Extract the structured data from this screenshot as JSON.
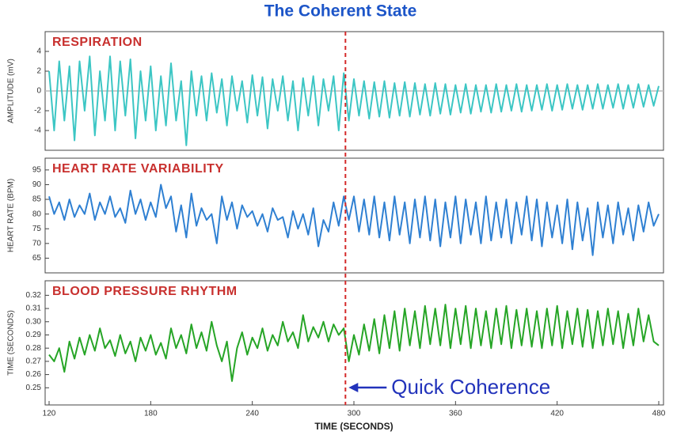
{
  "title": "The Coherent State",
  "chart_data": [
    {
      "type": "line",
      "title": "RESPIRATION",
      "ylabel": "AMPLITUDE (mV)",
      "color": "#3cc6c4",
      "xlim": [
        120,
        480
      ],
      "ylim": [
        -6,
        6
      ],
      "yticks": [
        -4,
        -2,
        0,
        2,
        4
      ],
      "zero_line": true,
      "x": [
        120,
        123,
        126,
        129,
        132,
        135,
        138,
        141,
        144,
        147,
        150,
        153,
        156,
        159,
        162,
        165,
        168,
        171,
        174,
        177,
        180,
        183,
        186,
        189,
        192,
        195,
        198,
        201,
        204,
        207,
        210,
        213,
        216,
        219,
        222,
        225,
        228,
        231,
        234,
        237,
        240,
        243,
        246,
        249,
        252,
        255,
        258,
        261,
        264,
        267,
        270,
        273,
        276,
        279,
        282,
        285,
        288,
        291,
        294,
        297,
        300,
        303,
        306,
        309,
        312,
        315,
        318,
        321,
        324,
        327,
        330,
        333,
        336,
        339,
        342,
        345,
        348,
        351,
        354,
        357,
        360,
        363,
        366,
        369,
        372,
        375,
        378,
        381,
        384,
        387,
        390,
        393,
        396,
        399,
        402,
        405,
        408,
        411,
        414,
        417,
        420,
        423,
        426,
        429,
        432,
        435,
        438,
        441,
        444,
        447,
        450,
        453,
        456,
        459,
        462,
        465,
        468,
        471,
        474,
        477,
        480
      ],
      "values": [
        2,
        -4,
        3,
        -3,
        2.5,
        -5,
        3,
        -2,
        3.5,
        -4.5,
        2,
        -3,
        3.5,
        -4,
        3,
        -2.5,
        3.2,
        -4.8,
        2,
        -3,
        2.5,
        -4,
        1.5,
        -3.5,
        2.8,
        -3,
        1,
        -5.5,
        2,
        -2.5,
        1.5,
        -3,
        1.8,
        -2.2,
        1.2,
        -3.5,
        1.5,
        -2,
        1,
        -3.2,
        1.6,
        -2.5,
        1.4,
        -3.8,
        1.2,
        -2,
        1.5,
        -3,
        1,
        -4,
        1.3,
        -2.5,
        1.5,
        -3.5,
        1.2,
        -2,
        1.5,
        -4,
        1.8,
        -3,
        1.2,
        -2.5,
        1,
        -2.8,
        0.9,
        -2.6,
        1,
        -2.7,
        0.8,
        -2.5,
        0.9,
        -2.6,
        0.8,
        -2.4,
        0.7,
        -2.5,
        0.8,
        -2.3,
        0.7,
        -2.4,
        0.6,
        -2.2,
        0.7,
        -2.3,
        0.6,
        -2.1,
        0.6,
        -2.2,
        0.7,
        -2.1,
        0.6,
        -2,
        0.7,
        -2.1,
        0.6,
        -2,
        0.6,
        -1.9,
        0.7,
        -2,
        0.6,
        -1.9,
        0.7,
        -1.8,
        0.6,
        -1.9,
        0.6,
        -1.8,
        0.7,
        -1.8,
        0.6,
        -1.7,
        0.7,
        -1.8,
        0.6,
        -1.7,
        0.7,
        -1.6,
        0.6,
        -1.5,
        0.5
      ]
    },
    {
      "type": "line",
      "title": "HEART RATE VARIABILITY",
      "ylabel": "HEART RATE (BPM)",
      "color": "#2f80d2",
      "xlim": [
        120,
        480
      ],
      "ylim": [
        60,
        99
      ],
      "yticks": [
        65,
        70,
        75,
        80,
        85,
        90,
        95
      ],
      "x": [
        120,
        123,
        126,
        129,
        132,
        135,
        138,
        141,
        144,
        147,
        150,
        153,
        156,
        159,
        162,
        165,
        168,
        171,
        174,
        177,
        180,
        183,
        186,
        189,
        192,
        195,
        198,
        201,
        204,
        207,
        210,
        213,
        216,
        219,
        222,
        225,
        228,
        231,
        234,
        237,
        240,
        243,
        246,
        249,
        252,
        255,
        258,
        261,
        264,
        267,
        270,
        273,
        276,
        279,
        282,
        285,
        288,
        291,
        294,
        297,
        300,
        303,
        306,
        309,
        312,
        315,
        318,
        321,
        324,
        327,
        330,
        333,
        336,
        339,
        342,
        345,
        348,
        351,
        354,
        357,
        360,
        363,
        366,
        369,
        372,
        375,
        378,
        381,
        384,
        387,
        390,
        393,
        396,
        399,
        402,
        405,
        408,
        411,
        414,
        417,
        420,
        423,
        426,
        429,
        432,
        435,
        438,
        441,
        444,
        447,
        450,
        453,
        456,
        459,
        462,
        465,
        468,
        471,
        474,
        477,
        480
      ],
      "values": [
        86,
        80,
        84,
        78,
        85,
        79,
        83,
        80,
        87,
        78,
        84,
        80,
        86,
        79,
        82,
        77,
        88,
        80,
        85,
        78,
        84,
        79,
        90,
        82,
        86,
        74,
        83,
        72,
        87,
        76,
        82,
        78,
        80,
        70,
        86,
        78,
        84,
        75,
        83,
        79,
        81,
        76,
        80,
        74,
        82,
        78,
        79,
        72,
        81,
        75,
        80,
        73,
        82,
        69,
        78,
        74,
        84,
        76,
        86,
        78,
        86,
        74,
        85,
        73,
        86,
        72,
        84,
        71,
        86,
        73,
        84,
        70,
        85,
        72,
        86,
        71,
        85,
        69,
        84,
        72,
        86,
        70,
        85,
        73,
        84,
        70,
        86,
        71,
        84,
        72,
        85,
        70,
        84,
        73,
        86,
        71,
        85,
        69,
        84,
        72,
        83,
        70,
        85,
        68,
        84,
        71,
        82,
        66,
        84,
        72,
        83,
        70,
        84,
        73,
        82,
        71,
        83,
        74,
        84,
        76,
        80
      ]
    },
    {
      "type": "line",
      "title": "BLOOD PRESSURE RHYTHM",
      "ylabel": "TIME (SECONDS)",
      "xlabel": "TIME (SECONDS)",
      "color": "#26a526",
      "xlim": [
        120,
        480
      ],
      "ylim": [
        0.237,
        0.331
      ],
      "yticks": [
        0.25,
        0.26,
        0.27,
        0.28,
        0.29,
        {
          "value": 0.3,
          "label": "0.30"
        },
        0.31,
        0.32
      ],
      "xticks": [
        120,
        180,
        240,
        300,
        360,
        420,
        480
      ],
      "annotation": {
        "text": "Quick Coherence",
        "x": 295
      },
      "x": [
        120,
        123,
        126,
        129,
        132,
        135,
        138,
        141,
        144,
        147,
        150,
        153,
        156,
        159,
        162,
        165,
        168,
        171,
        174,
        177,
        180,
        183,
        186,
        189,
        192,
        195,
        198,
        201,
        204,
        207,
        210,
        213,
        216,
        219,
        222,
        225,
        228,
        231,
        234,
        237,
        240,
        243,
        246,
        249,
        252,
        255,
        258,
        261,
        264,
        267,
        270,
        273,
        276,
        279,
        282,
        285,
        288,
        291,
        294,
        297,
        300,
        303,
        306,
        309,
        312,
        315,
        318,
        321,
        324,
        327,
        330,
        333,
        336,
        339,
        342,
        345,
        348,
        351,
        354,
        357,
        360,
        363,
        366,
        369,
        372,
        375,
        378,
        381,
        384,
        387,
        390,
        393,
        396,
        399,
        402,
        405,
        408,
        411,
        414,
        417,
        420,
        423,
        426,
        429,
        432,
        435,
        438,
        441,
        444,
        447,
        450,
        453,
        456,
        459,
        462,
        465,
        468,
        471,
        474,
        477,
        480
      ],
      "values": [
        0.275,
        0.27,
        0.28,
        0.262,
        0.285,
        0.272,
        0.288,
        0.275,
        0.29,
        0.278,
        0.295,
        0.28,
        0.286,
        0.274,
        0.29,
        0.276,
        0.285,
        0.27,
        0.288,
        0.278,
        0.29,
        0.275,
        0.284,
        0.272,
        0.295,
        0.28,
        0.29,
        0.276,
        0.298,
        0.28,
        0.292,
        0.278,
        0.3,
        0.282,
        0.27,
        0.285,
        0.255,
        0.28,
        0.292,
        0.275,
        0.288,
        0.28,
        0.295,
        0.278,
        0.29,
        0.282,
        0.3,
        0.285,
        0.292,
        0.28,
        0.305,
        0.285,
        0.296,
        0.288,
        0.3,
        0.285,
        0.298,
        0.29,
        0.295,
        0.27,
        0.29,
        0.275,
        0.298,
        0.278,
        0.302,
        0.276,
        0.305,
        0.28,
        0.308,
        0.278,
        0.31,
        0.282,
        0.308,
        0.28,
        0.312,
        0.283,
        0.31,
        0.282,
        0.313,
        0.28,
        0.31,
        0.283,
        0.312,
        0.28,
        0.31,
        0.282,
        0.308,
        0.28,
        0.31,
        0.283,
        0.312,
        0.28,
        0.309,
        0.282,
        0.31,
        0.281,
        0.308,
        0.28,
        0.31,
        0.282,
        0.312,
        0.28,
        0.308,
        0.283,
        0.31,
        0.281,
        0.309,
        0.28,
        0.308,
        0.282,
        0.31,
        0.283,
        0.308,
        0.28,
        0.306,
        0.282,
        0.31,
        0.285,
        0.305,
        0.285,
        0.282
      ]
    }
  ]
}
